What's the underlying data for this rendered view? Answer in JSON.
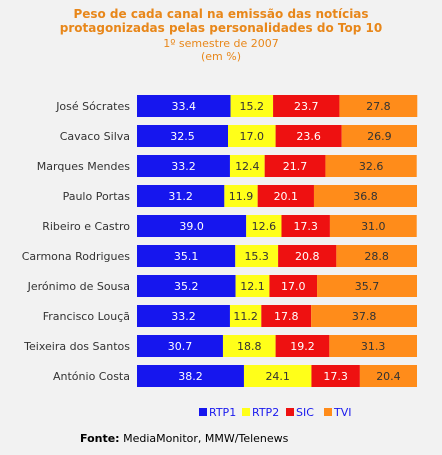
{
  "chart_data": {
    "type": "bar",
    "orientation": "horizontal",
    "stacked": true,
    "title_lines": [
      "Peso de cada canal na emissão das notícias",
      "protagonizadas pelas personalidades do Top 10"
    ],
    "subtitle_lines": [
      "1º semestre de 2007",
      "(em %)"
    ],
    "categories": [
      "José Sócrates",
      "Cavaco Silva",
      "Marques Mendes",
      "Paulo Portas",
      "Ribeiro e Castro",
      "Carmona Rodrigues",
      "Jerónimo de Sousa",
      "Francisco Louçã",
      "Teixeira dos Santos",
      "António Costa"
    ],
    "series": [
      {
        "name": "RTP1",
        "color": "#1616ee",
        "values": [
          33.4,
          32.5,
          33.2,
          31.2,
          39.0,
          35.1,
          35.2,
          33.2,
          30.7,
          38.2
        ]
      },
      {
        "name": "RTP2",
        "color": "#ffff19",
        "values": [
          15.2,
          17.0,
          12.4,
          11.9,
          12.6,
          15.3,
          12.1,
          11.2,
          18.8,
          24.1
        ]
      },
      {
        "name": "SIC",
        "color": "#ee1111",
        "values": [
          23.7,
          23.6,
          21.7,
          20.1,
          17.3,
          20.8,
          17.0,
          17.8,
          19.2,
          17.3
        ]
      },
      {
        "name": "TVI",
        "color": "#ff8c1a",
        "values": [
          27.8,
          26.9,
          32.6,
          36.8,
          31.0,
          28.8,
          35.7,
          37.8,
          31.3,
          20.4
        ]
      }
    ],
    "xlim": [
      0,
      100
    ],
    "legend_position": "bottom",
    "grid": false
  },
  "source": {
    "label": "Fonte:",
    "text": "MediaMonitor, MMW/Telenews"
  }
}
